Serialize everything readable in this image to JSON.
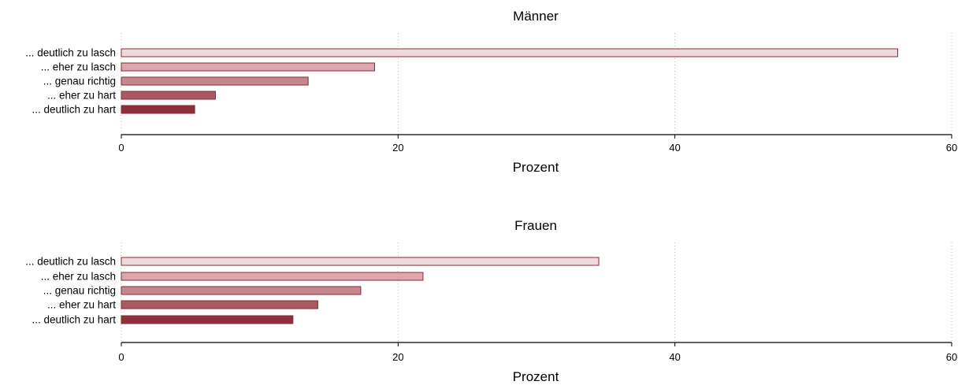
{
  "chart_data": [
    {
      "type": "bar",
      "orientation": "horizontal",
      "title": "Männer",
      "xlabel": "Prozent",
      "ylabel": "",
      "xlim": [
        0,
        60
      ],
      "xticks": [
        0,
        20,
        40,
        60
      ],
      "grid": true,
      "categories": [
        "... deutlich zu lasch",
        "... eher zu lasch",
        "... genau richtig",
        "... eher zu hart",
        "... deutlich zu hart"
      ],
      "values": [
        56.1,
        18.3,
        13.5,
        6.8,
        5.3
      ],
      "colors": [
        "#efd9dc",
        "#dba6ac",
        "#c4878d",
        "#a85a62",
        "#8f2f3a"
      ]
    },
    {
      "type": "bar",
      "orientation": "horizontal",
      "title": "Frauen",
      "xlabel": "Prozent",
      "ylabel": "",
      "xlim": [
        0,
        60
      ],
      "xticks": [
        0,
        20,
        40,
        60
      ],
      "grid": true,
      "categories": [
        "... deutlich zu lasch",
        "... eher zu lasch",
        "... genau richtig",
        "... eher zu hart",
        "... deutlich zu hart"
      ],
      "values": [
        34.5,
        21.8,
        17.3,
        14.2,
        12.4
      ],
      "colors": [
        "#efd9dc",
        "#dba6ac",
        "#c4878d",
        "#a85a62",
        "#8f2f3a"
      ]
    }
  ]
}
